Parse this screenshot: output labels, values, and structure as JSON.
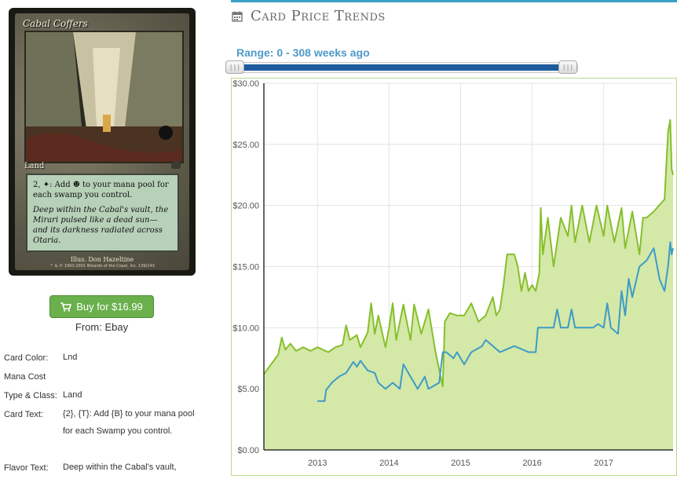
{
  "card": {
    "title": "Cabal Coffers",
    "type_line": "Land",
    "rules_text": "2, ✦: Add ☻ to your mana pool for each swamp you control.",
    "flavor_text": "Deep within the Cabal's vault, the Mirari pulsed like a dead sun—and its darkness radiated across Otaria.",
    "illustrator": "Illus. Don Hazeltine",
    "copyright": "™ & © 1993-2001 Wizards of the Coast, Inc. 139/143"
  },
  "buy_button": {
    "label": "Buy for $16.99",
    "icon": "shopping-cart-icon",
    "color": "#6ab04c"
  },
  "from_label": "From: Ebay",
  "details": [
    {
      "label": "Card Color:",
      "value": "Lnd"
    },
    {
      "label": "Mana Cost",
      "value": ""
    },
    {
      "label": "Type & Class:",
      "value": "Land"
    },
    {
      "label": "Card Text:",
      "value": "{2}, {T}: Add {B} to your mana pool for each Swamp you control."
    },
    {
      "label": "Flavor Text:",
      "value": "Deep within the Cabal's vault,"
    }
  ],
  "section": {
    "title": "Card Price Trends",
    "icon": "calendar-icon",
    "accent": "#3aa0c5"
  },
  "range_label": "Range: 0 - 308 weeks ago",
  "chart_data": {
    "type": "line",
    "ylim": [
      0,
      30
    ],
    "xlim": [
      2012.25,
      2017.97
    ],
    "y_ticks": [
      "$0.00",
      "$5.00",
      "$10.00",
      "$15.00",
      "$20.00",
      "$25.00",
      "$30.00"
    ],
    "y_tick_values": [
      0,
      5,
      10,
      15,
      20,
      25,
      30
    ],
    "x_ticks": [
      "2013",
      "2014",
      "2015",
      "2016",
      "2017"
    ],
    "x_tick_values": [
      2013,
      2014,
      2015,
      2016,
      2017
    ],
    "grid": true,
    "series": [
      {
        "color": "#86bf2b",
        "fill": "#d4e8a8",
        "points": [
          [
            2012.25,
            6.2
          ],
          [
            2012.45,
            7.8
          ],
          [
            2012.5,
            9.2
          ],
          [
            2012.55,
            8.2
          ],
          [
            2012.62,
            8.7
          ],
          [
            2012.7,
            8.1
          ],
          [
            2012.8,
            8.4
          ],
          [
            2012.9,
            8.1
          ],
          [
            2013.0,
            8.4
          ],
          [
            2013.15,
            8.0
          ],
          [
            2013.25,
            8.4
          ],
          [
            2013.35,
            8.6
          ],
          [
            2013.4,
            10.2
          ],
          [
            2013.45,
            9.0
          ],
          [
            2013.55,
            9.4
          ],
          [
            2013.6,
            8.4
          ],
          [
            2013.7,
            9.6
          ],
          [
            2013.75,
            12.0
          ],
          [
            2013.8,
            9.5
          ],
          [
            2013.85,
            11.0
          ],
          [
            2013.95,
            8.4
          ],
          [
            2014.0,
            10.0
          ],
          [
            2014.05,
            12.0
          ],
          [
            2014.1,
            9.0
          ],
          [
            2014.2,
            11.9
          ],
          [
            2014.3,
            9.0
          ],
          [
            2014.35,
            11.9
          ],
          [
            2014.45,
            9.5
          ],
          [
            2014.55,
            11.5
          ],
          [
            2014.65,
            8.0
          ],
          [
            2014.75,
            5.2
          ],
          [
            2014.78,
            10.5
          ],
          [
            2014.85,
            11.2
          ],
          [
            2014.95,
            11.0
          ],
          [
            2015.05,
            11.0
          ],
          [
            2015.15,
            12.0
          ],
          [
            2015.25,
            10.5
          ],
          [
            2015.35,
            11.0
          ],
          [
            2015.45,
            12.5
          ],
          [
            2015.5,
            11.0
          ],
          [
            2015.55,
            11.5
          ],
          [
            2015.6,
            13.5
          ],
          [
            2015.65,
            16.0
          ],
          [
            2015.75,
            16.0
          ],
          [
            2015.8,
            15.0
          ],
          [
            2015.85,
            13.0
          ],
          [
            2015.9,
            14.5
          ],
          [
            2015.95,
            13.0
          ],
          [
            2016.0,
            13.5
          ],
          [
            2016.05,
            13.0
          ],
          [
            2016.1,
            14.5
          ],
          [
            2016.12,
            19.8
          ],
          [
            2016.15,
            16.0
          ],
          [
            2016.22,
            19.0
          ],
          [
            2016.3,
            15.0
          ],
          [
            2016.4,
            19.0
          ],
          [
            2016.5,
            17.5
          ],
          [
            2016.55,
            20.0
          ],
          [
            2016.6,
            17.0
          ],
          [
            2016.7,
            20.0
          ],
          [
            2016.8,
            17.0
          ],
          [
            2016.9,
            20.0
          ],
          [
            2017.0,
            17.5
          ],
          [
            2017.05,
            20.0
          ],
          [
            2017.15,
            17.0
          ],
          [
            2017.25,
            19.8
          ],
          [
            2017.3,
            16.5
          ],
          [
            2017.4,
            19.5
          ],
          [
            2017.5,
            16.0
          ],
          [
            2017.55,
            19.0
          ],
          [
            2017.6,
            19.0
          ],
          [
            2017.7,
            19.5
          ],
          [
            2017.85,
            20.5
          ],
          [
            2017.9,
            26.0
          ],
          [
            2017.93,
            27.0
          ],
          [
            2017.95,
            23.0
          ],
          [
            2017.97,
            22.5
          ]
        ]
      },
      {
        "color": "#3d9bc6",
        "points": [
          [
            2013.0,
            4.0
          ],
          [
            2013.1,
            4.0
          ],
          [
            2013.12,
            4.9
          ],
          [
            2013.2,
            5.5
          ],
          [
            2013.3,
            6.0
          ],
          [
            2013.4,
            6.3
          ],
          [
            2013.5,
            7.2
          ],
          [
            2013.55,
            6.8
          ],
          [
            2013.6,
            7.3
          ],
          [
            2013.7,
            6.5
          ],
          [
            2013.8,
            6.3
          ],
          [
            2013.85,
            5.5
          ],
          [
            2013.95,
            5.0
          ],
          [
            2014.05,
            5.5
          ],
          [
            2014.15,
            5.0
          ],
          [
            2014.2,
            7.0
          ],
          [
            2014.3,
            6.0
          ],
          [
            2014.4,
            5.0
          ],
          [
            2014.5,
            6.0
          ],
          [
            2014.55,
            5.0
          ],
          [
            2014.7,
            5.5
          ],
          [
            2014.75,
            8.0
          ],
          [
            2014.8,
            8.0
          ],
          [
            2014.9,
            7.5
          ],
          [
            2014.95,
            8.0
          ],
          [
            2015.05,
            7.0
          ],
          [
            2015.15,
            8.0
          ],
          [
            2015.3,
            8.5
          ],
          [
            2015.35,
            9.0
          ],
          [
            2015.55,
            8.0
          ],
          [
            2015.75,
            8.5
          ],
          [
            2015.95,
            8.0
          ],
          [
            2016.05,
            8.0
          ],
          [
            2016.08,
            10.0
          ],
          [
            2016.3,
            10.0
          ],
          [
            2016.35,
            11.5
          ],
          [
            2016.4,
            10.0
          ],
          [
            2016.5,
            10.0
          ],
          [
            2016.55,
            11.5
          ],
          [
            2016.6,
            10.0
          ],
          [
            2016.75,
            10.0
          ],
          [
            2016.85,
            10.0
          ],
          [
            2016.92,
            10.3
          ],
          [
            2017.0,
            10.0
          ],
          [
            2017.05,
            12.0
          ],
          [
            2017.1,
            10.0
          ],
          [
            2017.2,
            9.5
          ],
          [
            2017.25,
            13.0
          ],
          [
            2017.3,
            11.0
          ],
          [
            2017.35,
            14.0
          ],
          [
            2017.4,
            12.5
          ],
          [
            2017.5,
            15.0
          ],
          [
            2017.6,
            15.5
          ],
          [
            2017.7,
            16.5
          ],
          [
            2017.78,
            14.0
          ],
          [
            2017.85,
            13.0
          ],
          [
            2017.9,
            15.0
          ],
          [
            2017.93,
            17.0
          ],
          [
            2017.95,
            16.0
          ],
          [
            2017.97,
            16.5
          ]
        ]
      }
    ]
  }
}
